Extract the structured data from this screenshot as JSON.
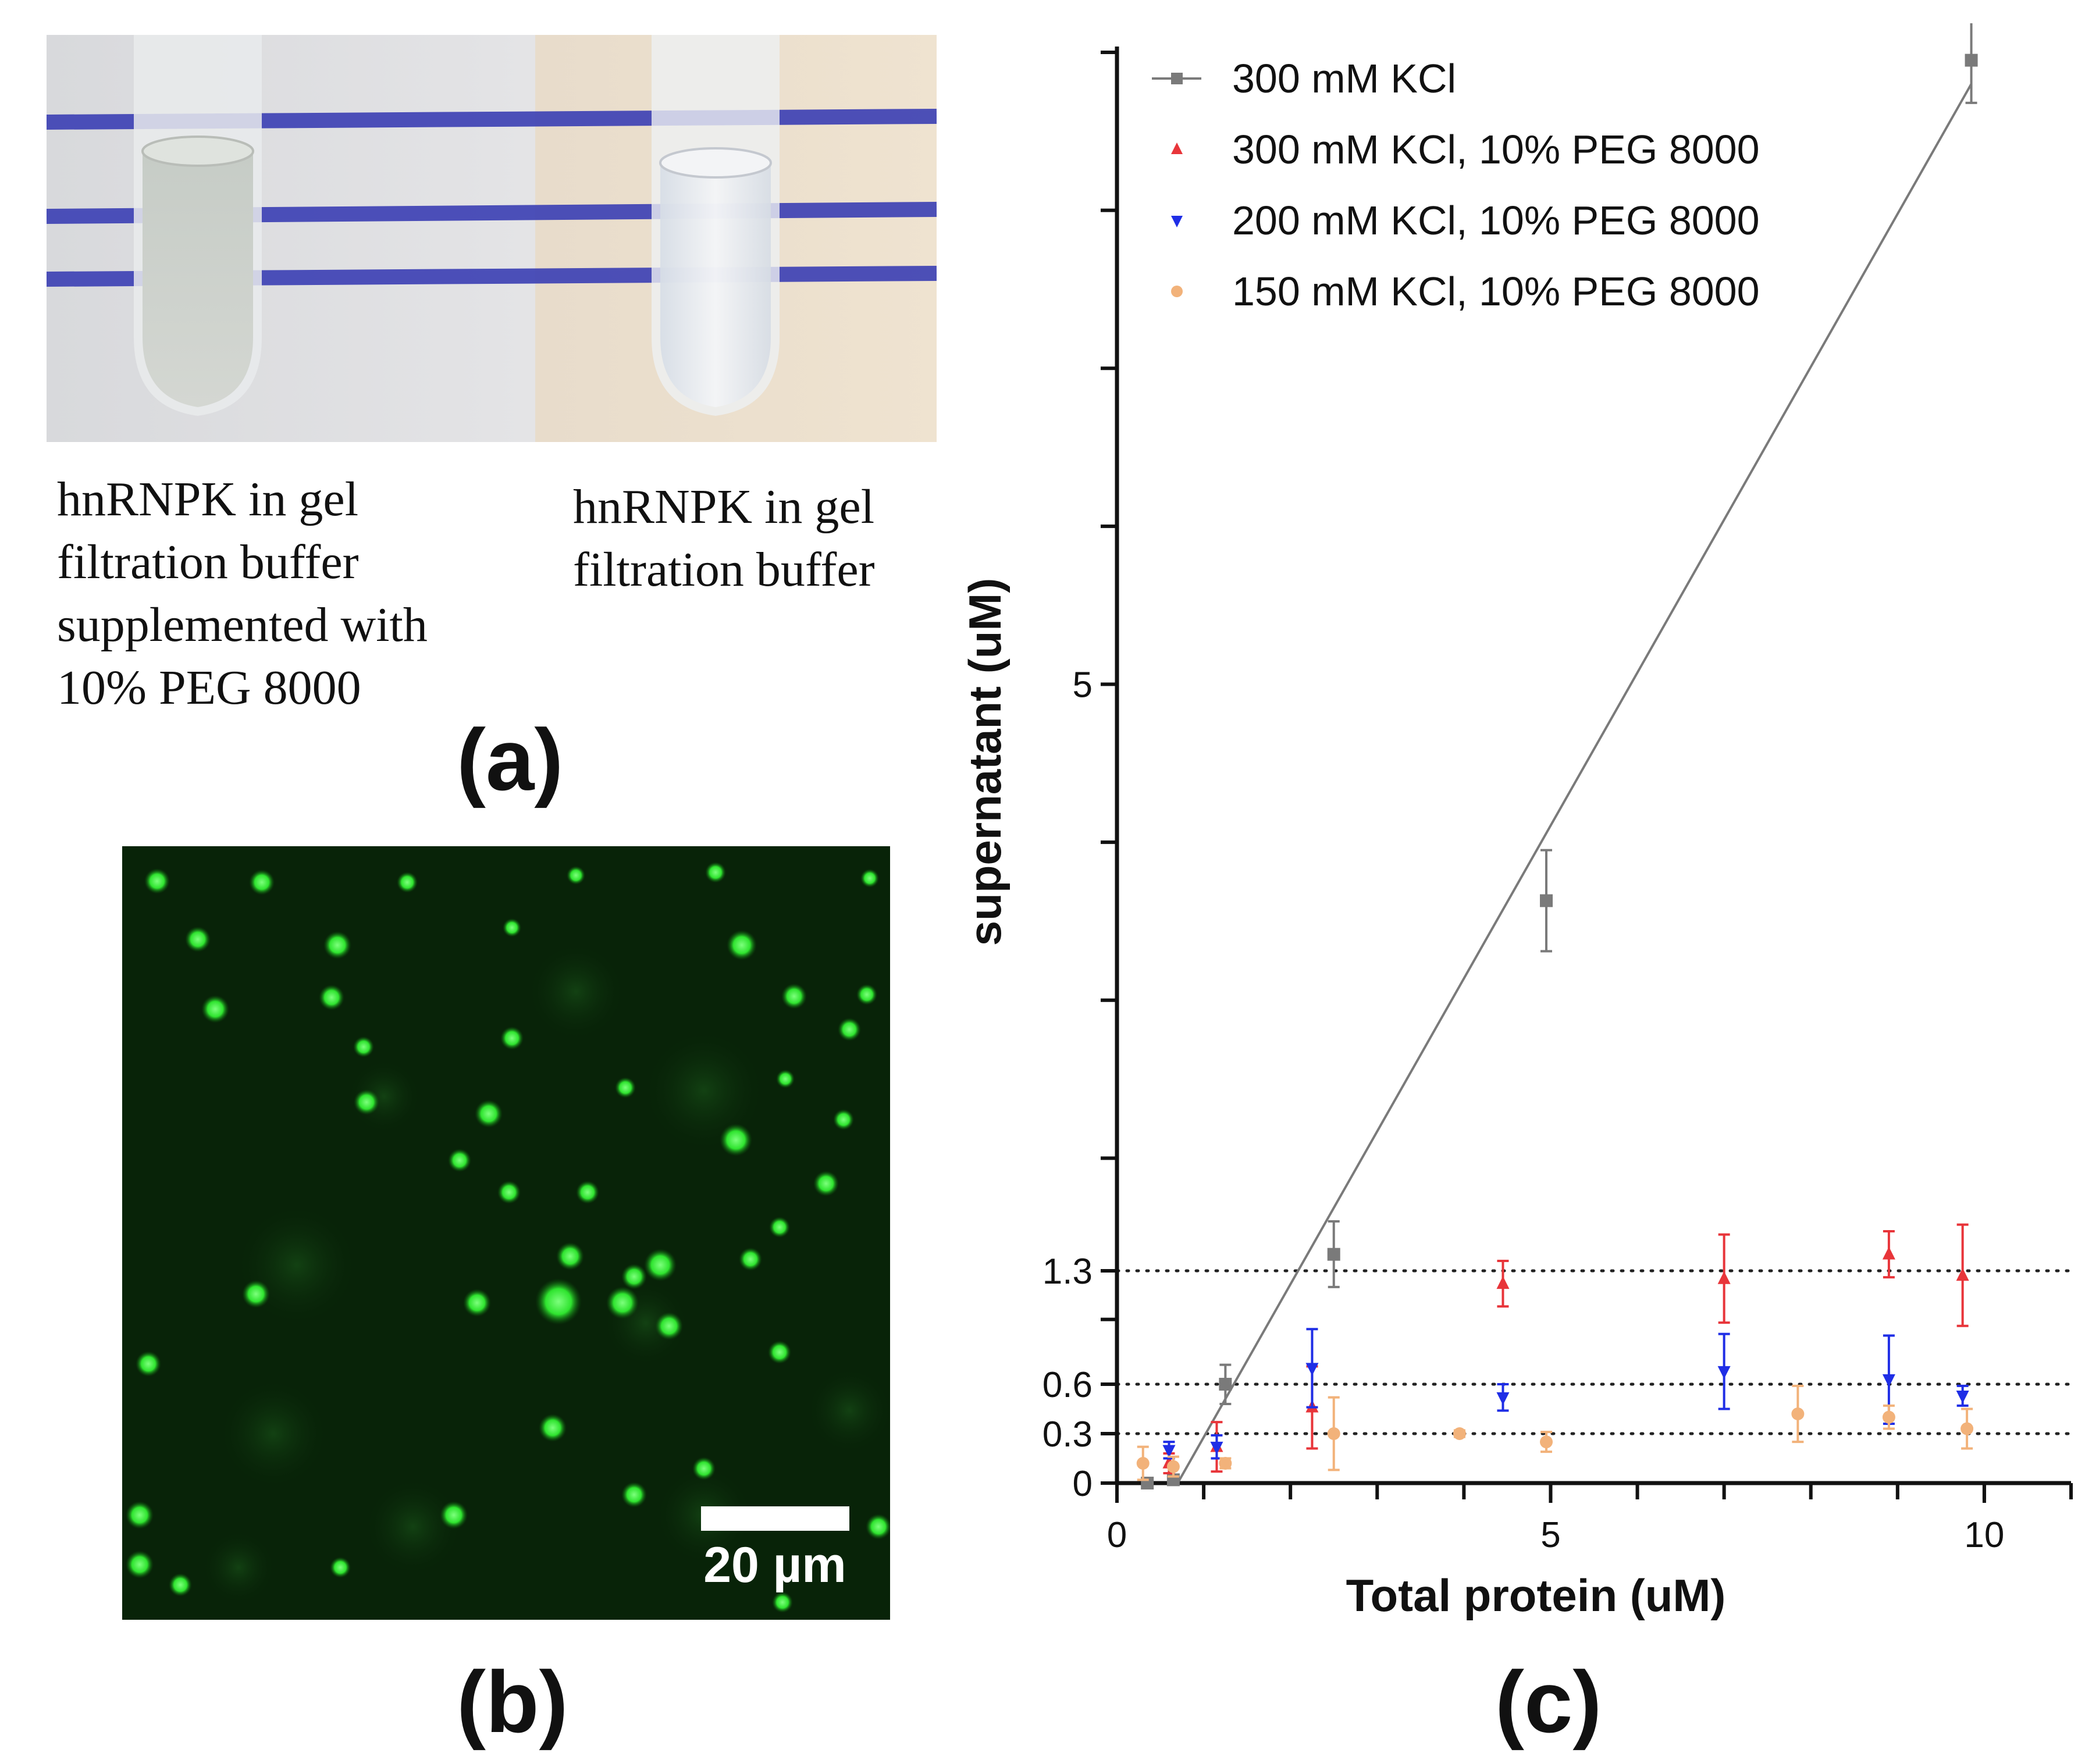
{
  "panel_a": {
    "label": "(a)",
    "caption_left": [
      "hnRNPK in gel",
      "filtration buffer",
      "supplemented with",
      "10% PEG 8000"
    ],
    "caption_right": [
      "hnRNPK in gel",
      "filtration buffer"
    ]
  },
  "panel_b": {
    "label": "(b)",
    "scale_bar_label": "20 µm"
  },
  "panel_c": {
    "label": "(c)"
  },
  "colors": {
    "series_300": "#7a7a7a",
    "series_300_peg": "#e8353a",
    "series_200_peg": "#1f2ee6",
    "series_150_peg": "#f2b27a",
    "fluorescence": "#33ee33"
  },
  "chart_data": {
    "type": "scatter",
    "xlabel": "Total protein (uM)",
    "ylabel": "supernatant (uM)",
    "xlim": [
      0,
      11
    ],
    "ylim": [
      0,
      9
    ],
    "xticks": [
      0,
      5,
      10
    ],
    "yticks": [
      0,
      0.3,
      0.6,
      1.3,
      5
    ],
    "reference_lines": [
      0.3,
      0.6,
      1.3
    ],
    "legend_position": "top-left",
    "series": [
      {
        "name": "300 mM KCl",
        "marker": "square",
        "color": "#7a7a7a",
        "fit_line": [
          [
            0.7,
            0
          ],
          [
            9.85,
            8.8
          ]
        ],
        "points": [
          {
            "x": 0.35,
            "y": 0.0,
            "err": 0.03
          },
          {
            "x": 0.65,
            "y": 0.02,
            "err": 0.03
          },
          {
            "x": 1.25,
            "y": 0.6,
            "err": 0.12
          },
          {
            "x": 2.5,
            "y": 1.4,
            "err": 0.2
          },
          {
            "x": 4.95,
            "y": 3.63,
            "err": 0.32
          },
          {
            "x": 9.85,
            "y": 8.95,
            "err": 0.27
          }
        ]
      },
      {
        "name": "300 mM KCl, 10% PEG 8000",
        "marker": "triangle-up",
        "color": "#e8353a",
        "points": [
          {
            "x": 0.6,
            "y": 0.12,
            "err": 0.06
          },
          {
            "x": 1.15,
            "y": 0.22,
            "err": 0.15
          },
          {
            "x": 2.25,
            "y": 0.46,
            "err": 0.25
          },
          {
            "x": 4.45,
            "y": 1.22,
            "err": 0.14
          },
          {
            "x": 7.0,
            "y": 1.25,
            "err": 0.27
          },
          {
            "x": 8.9,
            "y": 1.4,
            "err": 0.14
          },
          {
            "x": 9.75,
            "y": 1.27,
            "err": 0.31
          }
        ]
      },
      {
        "name": "200 mM KCl, 10% PEG 8000",
        "marker": "triangle-down",
        "color": "#1f2ee6",
        "points": [
          {
            "x": 0.6,
            "y": 0.2,
            "err": 0.05
          },
          {
            "x": 1.15,
            "y": 0.22,
            "err": 0.07
          },
          {
            "x": 2.25,
            "y": 0.7,
            "err": 0.24
          },
          {
            "x": 4.45,
            "y": 0.52,
            "err": 0.08
          },
          {
            "x": 7.0,
            "y": 0.68,
            "err": 0.23
          },
          {
            "x": 8.9,
            "y": 0.63,
            "err": 0.27
          },
          {
            "x": 9.75,
            "y": 0.53,
            "err": 0.06
          }
        ]
      },
      {
        "name": "150 mM KCl, 10% PEG 8000",
        "marker": "circle",
        "color": "#f2b27a",
        "points": [
          {
            "x": 0.3,
            "y": 0.12,
            "err": 0.1
          },
          {
            "x": 0.65,
            "y": 0.1,
            "err": 0.06
          },
          {
            "x": 1.25,
            "y": 0.12,
            "err": 0.03
          },
          {
            "x": 2.5,
            "y": 0.3,
            "err": 0.22
          },
          {
            "x": 3.95,
            "y": 0.3,
            "err": 0.02
          },
          {
            "x": 4.95,
            "y": 0.25,
            "err": 0.06
          },
          {
            "x": 7.85,
            "y": 0.42,
            "err": 0.17
          },
          {
            "x": 8.9,
            "y": 0.4,
            "err": 0.07
          },
          {
            "x": 9.8,
            "y": 0.33,
            "err": 0.12
          }
        ]
      }
    ]
  }
}
